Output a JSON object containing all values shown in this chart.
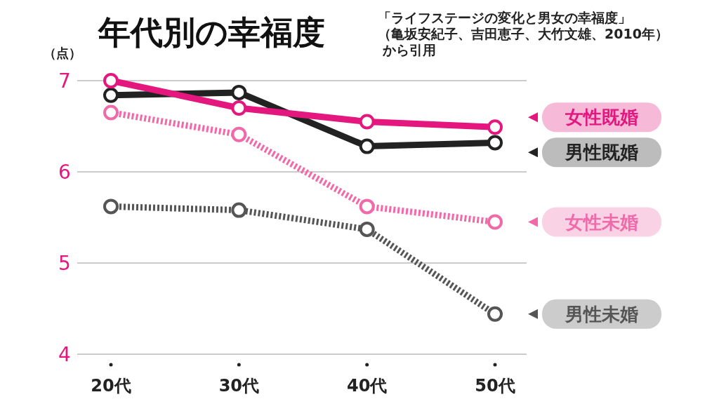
{
  "chart_data": {
    "type": "line",
    "title": "年代別の幸福度",
    "subtitle": "「ライフステージの変化と男女の幸福度」（亀坂安紀子、吉田恵子、大竹文雄、2010年）から引用",
    "ylabel": "（点）",
    "categories": [
      "20代",
      "30代",
      "40代",
      "50代"
    ],
    "ylim": [
      4,
      7
    ],
    "yticks": [
      4,
      5,
      6,
      7
    ],
    "grid": "y",
    "marker": "circle",
    "legend": "right",
    "series": [
      {
        "name": "男性未婚",
        "color": "#555555",
        "line_style": "dotted",
        "values": [
          5.62,
          5.58,
          5.37,
          4.44
        ]
      },
      {
        "name": "女性未婚",
        "color": "#f06aaa",
        "line_style": "dotted",
        "values": [
          6.65,
          6.41,
          5.62,
          5.45
        ]
      },
      {
        "name": "男性既婚",
        "color": "#222222",
        "line_style": "solid",
        "values": [
          6.84,
          6.87,
          6.28,
          6.32
        ]
      },
      {
        "name": "女性既婚",
        "color": "#e4177f",
        "line_style": "solid",
        "values": [
          7.0,
          6.7,
          6.55,
          6.49
        ]
      }
    ]
  }
}
